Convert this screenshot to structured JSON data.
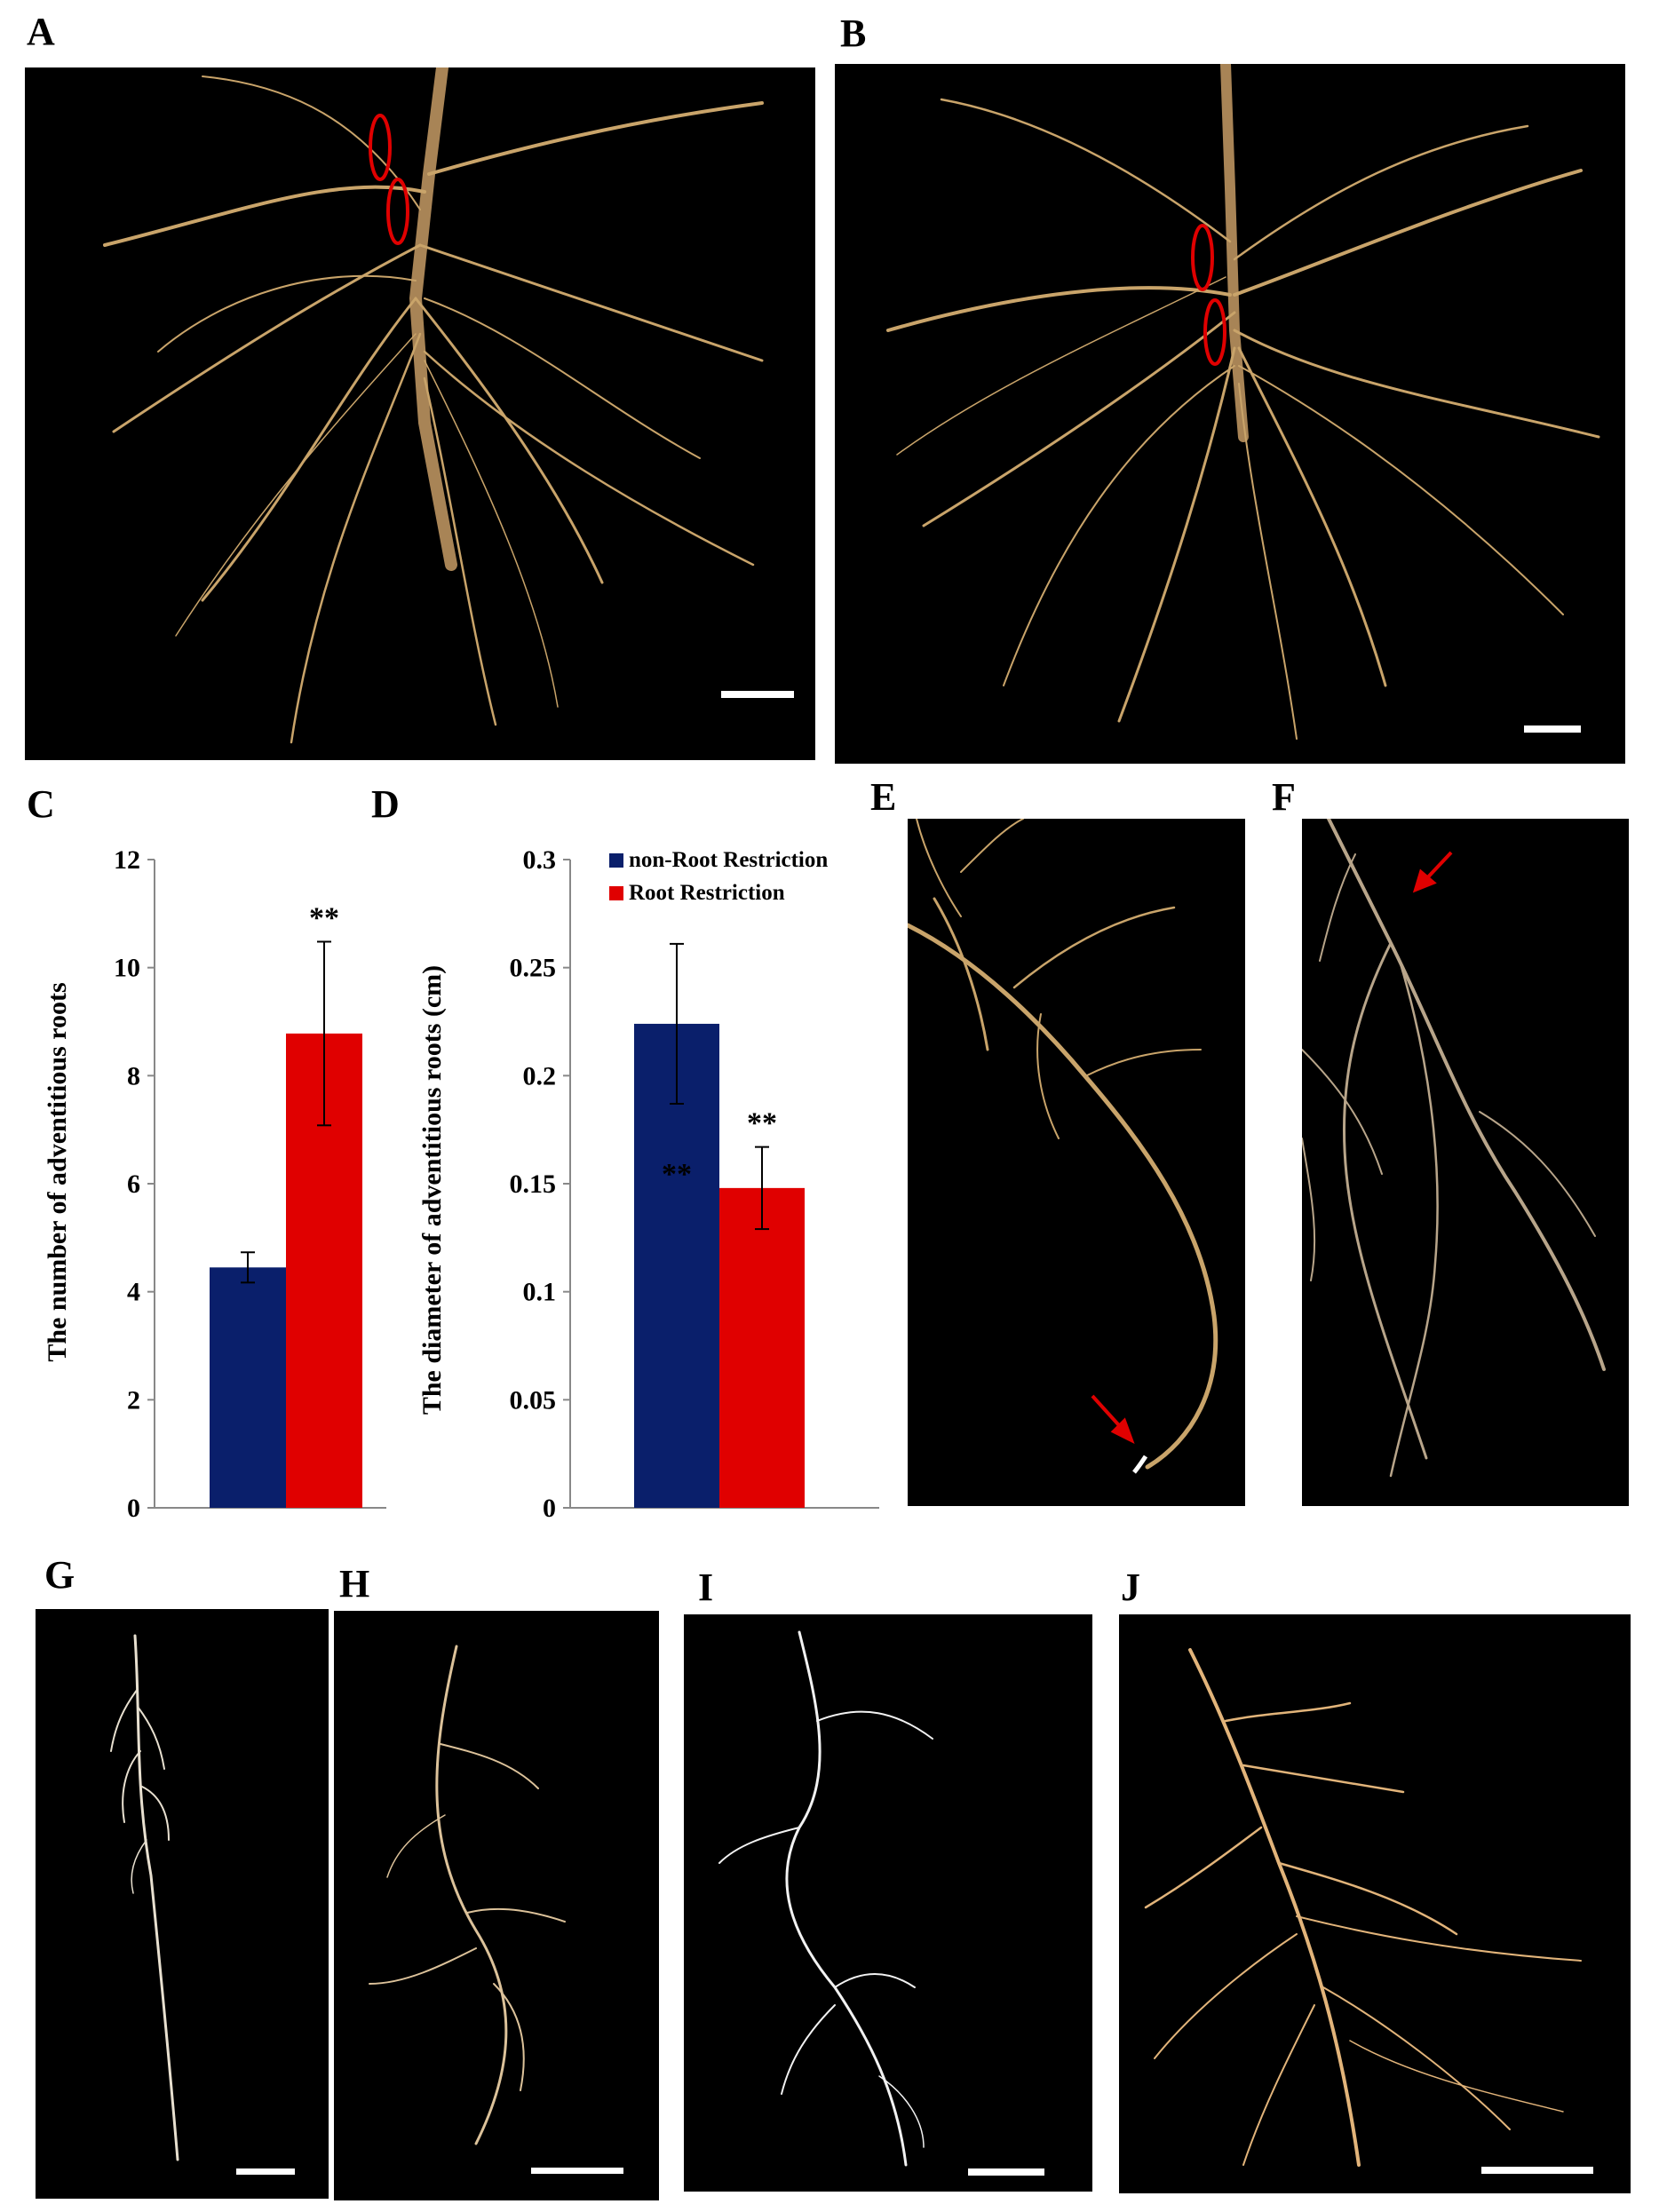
{
  "panels": {
    "A": "A",
    "B": "B",
    "C": "C",
    "D": "D",
    "E": "E",
    "F": "F",
    "G": "G",
    "H": "H",
    "I": "I",
    "J": "J"
  },
  "colors": {
    "non_root_restriction": "#0a1f6b",
    "root_restriction": "#e00000",
    "background_photo": "#000000",
    "root_tan": "#c9a46a",
    "annotation_red": "#e00000"
  },
  "chart_data": [
    {
      "panel": "C",
      "type": "bar",
      "ylabel": "The number of adventitious roots",
      "ylim": [
        0,
        12
      ],
      "yticks": [
        0,
        2,
        4,
        6,
        8,
        10,
        12
      ],
      "series": [
        {
          "name": "non-Root Restriction",
          "value": 4.45,
          "error": 0.28,
          "color": "#0a1f6b",
          "sig": ""
        },
        {
          "name": "Root Restriction",
          "value": 8.78,
          "error": 1.7,
          "color": "#e00000",
          "sig": "**"
        }
      ]
    },
    {
      "panel": "D",
      "type": "bar",
      "ylabel": "The diameter of adventitious roots (cm)",
      "ylim": [
        0,
        0.3
      ],
      "yticks": [
        0,
        0.05,
        0.1,
        0.15,
        0.2,
        0.25,
        0.3
      ],
      "ytick_labels": [
        "0",
        "0.05",
        "0.1",
        "0.15",
        "0.2",
        "0.25",
        "0.3"
      ],
      "legend": [
        "non-Root Restriction",
        "Root Restriction"
      ],
      "series": [
        {
          "name": "non-Root Restriction",
          "value": 0.224,
          "error": 0.037,
          "color": "#0a1f6b",
          "sig": "**"
        },
        {
          "name": "Root Restriction",
          "value": 0.148,
          "error": 0.019,
          "color": "#e00000",
          "sig": "**"
        }
      ]
    }
  ]
}
